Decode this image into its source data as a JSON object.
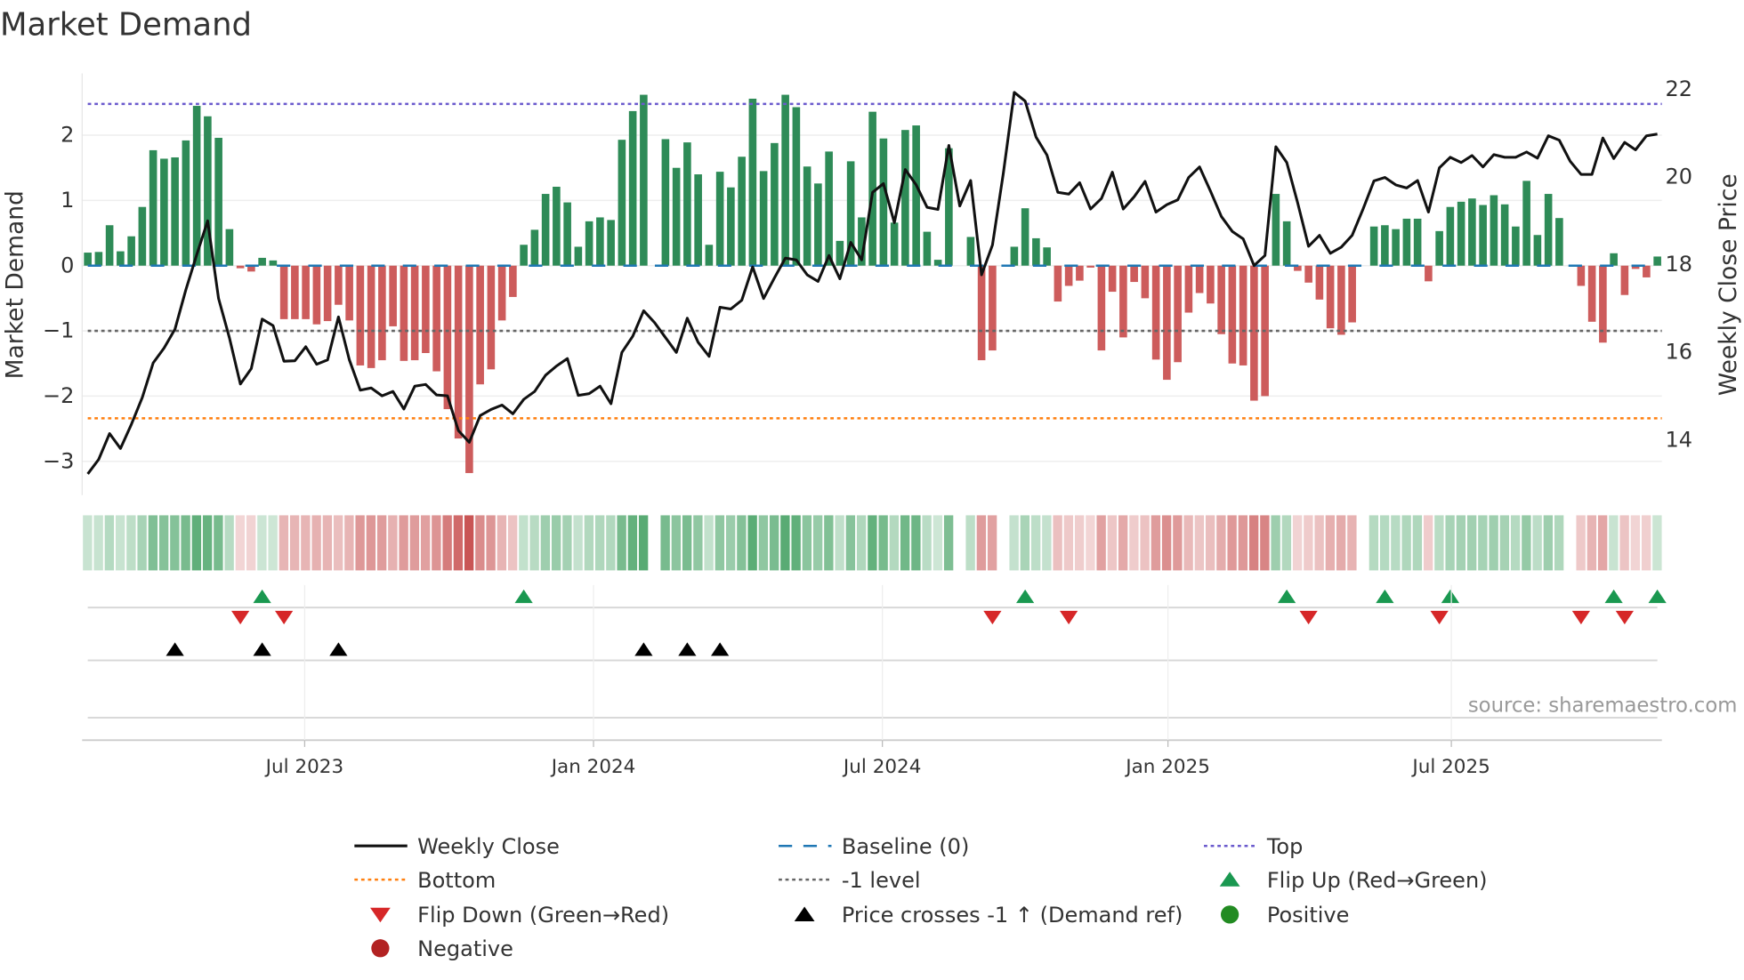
{
  "chart_data": {
    "type": "bar",
    "title": "Market Demand",
    "ylabel": "Market Demand",
    "y2label": "Weekly Close Price",
    "ylim": [
      -3.3,
      2.95
    ],
    "y2lim": [
      13.1,
      22.9
    ],
    "yticks": [
      -3,
      -2,
      -1,
      0,
      1,
      2
    ],
    "y2ticks": [
      14,
      16,
      18,
      20,
      22
    ],
    "x_unit": "week index",
    "xticks": [
      {
        "pos": 19.9,
        "label": "Jul 2023"
      },
      {
        "pos": 46.4,
        "label": "Jan 2024"
      },
      {
        "pos": 72.9,
        "label": "Jul 2024"
      },
      {
        "pos": 99.1,
        "label": "Jan 2025"
      },
      {
        "pos": 125.1,
        "label": "Jul 2025"
      }
    ],
    "levels": {
      "top": 2.48,
      "bottom": -2.34,
      "minus_one": -1,
      "baseline": 0
    },
    "series": [
      {
        "name": "Market Demand",
        "type": "bar",
        "values": [
          0.2,
          0.21,
          0.62,
          0.22,
          0.45,
          0.9,
          1.77,
          1.64,
          1.66,
          1.92,
          2.45,
          2.29,
          1.96,
          0.56,
          -0.04,
          -0.09,
          0.12,
          0.08,
          -0.82,
          -0.82,
          -0.82,
          -0.9,
          -0.85,
          -0.6,
          -0.84,
          -1.53,
          -1.57,
          -1.45,
          -0.93,
          -1.46,
          -1.45,
          -1.34,
          -1.62,
          -2.2,
          -2.65,
          -3.18,
          -1.82,
          -1.59,
          -0.84,
          -0.48,
          0.32,
          0.55,
          1.1,
          1.21,
          0.97,
          0.29,
          0.68,
          0.74,
          0.7,
          1.93,
          2.37,
          2.62,
          0,
          1.94,
          1.5,
          1.89,
          1.4,
          0.32,
          1.44,
          1.2,
          1.67,
          2.56,
          1.45,
          1.88,
          2.62,
          2.43,
          1.52,
          1.26,
          1.75,
          0.38,
          1.6,
          0.74,
          2.36,
          1.95,
          0.66,
          2.08,
          2.15,
          0.52,
          0.09,
          1.8,
          0,
          0.44,
          -1.45,
          -1.3,
          0,
          0.29,
          0.88,
          0.42,
          0.28,
          -0.55,
          -0.31,
          -0.23,
          -0.03,
          -1.3,
          -0.4,
          -1.1,
          -0.25,
          -0.5,
          -1.44,
          -1.75,
          -1.48,
          -0.72,
          -0.42,
          -0.58,
          -1.05,
          -1.5,
          -1.53,
          -2.07,
          -2.0,
          1.1,
          0.68,
          -0.08,
          -0.26,
          -0.52,
          -0.96,
          -1.06,
          -0.87,
          0,
          0.6,
          0.62,
          0.56,
          0.72,
          0.72,
          -0.24,
          0.53,
          0.9,
          0.98,
          1.03,
          0.93,
          1.08,
          0.94,
          0.6,
          1.3,
          0.47,
          1.1,
          0.73,
          0,
          -0.31,
          -0.86,
          -1.18,
          0.19,
          -0.45,
          -0.05,
          -0.18,
          0.14
        ]
      },
      {
        "name": "Weekly Close",
        "type": "line",
        "values": [
          13.2,
          13.53,
          14.12,
          13.78,
          14.33,
          14.94,
          15.73,
          16.07,
          16.5,
          17.4,
          18.2,
          18.97,
          17.2,
          16.3,
          15.25,
          15.6,
          16.73,
          16.58,
          15.77,
          15.78,
          16.1,
          15.7,
          15.8,
          16.78,
          15.8,
          15.11,
          15.16,
          14.98,
          15.08,
          14.68,
          15.2,
          15.24,
          15.0,
          14.98,
          14.19,
          13.92,
          14.53,
          14.67,
          14.77,
          14.57,
          14.9,
          15.08,
          15.45,
          15.66,
          15.83,
          14.99,
          15.03,
          15.2,
          14.8,
          15.97,
          16.34,
          16.92,
          16.65,
          16.31,
          15.97,
          16.75,
          16.2,
          15.88,
          17.0,
          16.96,
          17.16,
          17.92,
          17.2,
          17.67,
          18.12,
          18.08,
          17.74,
          17.59,
          18.18,
          17.65,
          18.48,
          18.08,
          19.62,
          19.82,
          18.93,
          20.14,
          19.79,
          19.28,
          19.23,
          20.69,
          19.31,
          19.89,
          17.74,
          18.42,
          20.06,
          21.9,
          21.7,
          20.88,
          20.47,
          19.62,
          19.58,
          19.84,
          19.24,
          19.48,
          20.08,
          19.24,
          19.52,
          19.87,
          19.17,
          19.34,
          19.45,
          19.96,
          20.2,
          19.65,
          19.07,
          18.73,
          18.56,
          17.95,
          18.18,
          20.66,
          20.3,
          19.38,
          18.39,
          18.64,
          18.23,
          18.37,
          18.64,
          19.24,
          19.88,
          19.96,
          19.79,
          19.72,
          19.89,
          19.17,
          20.18,
          20.42,
          20.3,
          20.46,
          20.2,
          20.48,
          20.42,
          20.42,
          20.54,
          20.4,
          20.91,
          20.81,
          20.33,
          20.03,
          20.03,
          20.86,
          20.39,
          20.76,
          20.59,
          20.91,
          20.95
        ]
      }
    ],
    "signals": {
      "flip_up": [
        16,
        40,
        86,
        110,
        119,
        125,
        140,
        144
      ],
      "flip_down": [
        14,
        18,
        83,
        90,
        112,
        124,
        137,
        141
      ],
      "price_crosses": [
        8,
        16,
        23,
        51,
        55,
        58
      ]
    },
    "legend": {
      "placement": "bottom",
      "items": [
        {
          "label": "Weekly Close",
          "kind": "line",
          "color": "#111111"
        },
        {
          "label": "Baseline (0)",
          "kind": "dash",
          "color": "#1f77b4"
        },
        {
          "label": "Top",
          "kind": "dot",
          "color": "#6a5acd"
        },
        {
          "label": "Bottom",
          "kind": "dot",
          "color": "#ff7f0e"
        },
        {
          "label": "-1 level",
          "kind": "dot",
          "color": "#666666"
        },
        {
          "label": "Flip Up (Red→Green)",
          "kind": "tri-up",
          "color": "#1a9850"
        },
        {
          "label": "Flip Down (Green→Red)",
          "kind": "tri-down",
          "color": "#d62728"
        },
        {
          "label": "Price crosses -1 ↑ (Demand ref)",
          "kind": "tri-up",
          "color": "#000000"
        },
        {
          "label": "Positive",
          "kind": "circle",
          "color": "#228b22"
        },
        {
          "label": "Negative",
          "kind": "circle",
          "color": "#b22222"
        }
      ]
    },
    "colors": {
      "positive": "#2e8b57",
      "negative": "#cd5c5c"
    },
    "source": "source: sharemaestro.com"
  }
}
